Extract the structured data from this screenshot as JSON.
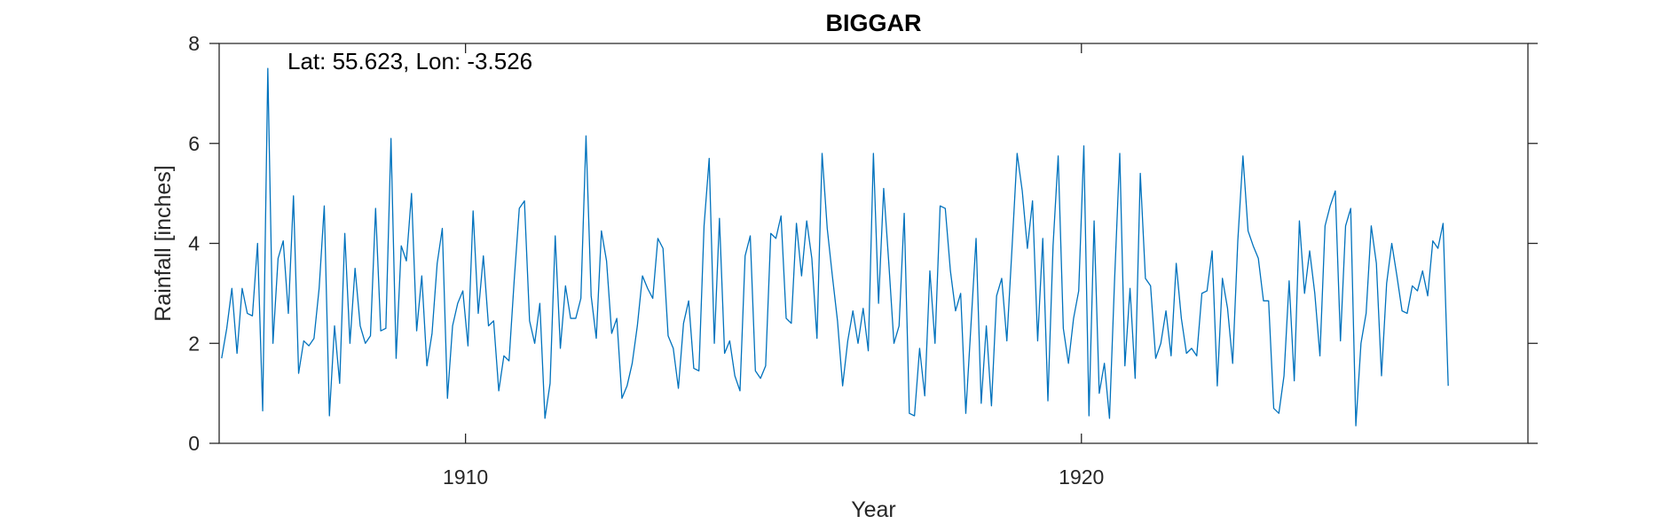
{
  "chart_data": {
    "type": "line",
    "title": "BIGGAR",
    "xlabel": "Year",
    "ylabel": "Rainfall [inches]",
    "annotation": "Lat: 55.623, Lon: -3.526",
    "xlim": [
      1906.0,
      1927.25
    ],
    "ylim": [
      0,
      8
    ],
    "xticks": [
      1910,
      1920
    ],
    "yticks": [
      0,
      2,
      4,
      6,
      8
    ],
    "grid": false,
    "x_start": 1906.04,
    "x_step": 0.08333,
    "line_color": "#0072BD",
    "series": [
      {
        "values": [
          1.7,
          2.3,
          3.1,
          1.8,
          3.1,
          2.6,
          2.55,
          4.0,
          0.65,
          7.5,
          2.0,
          3.7,
          4.05,
          2.6,
          4.95,
          1.4,
          2.05,
          1.95,
          2.1,
          3.1,
          4.75,
          0.55,
          2.35,
          1.2,
          4.2,
          2.0,
          3.5,
          2.35,
          2.0,
          2.15,
          4.7,
          2.25,
          2.3,
          6.1,
          1.7,
          3.95,
          3.65,
          5.0,
          2.25,
          3.35,
          1.55,
          2.2,
          3.6,
          4.3,
          0.9,
          2.35,
          2.8,
          3.05,
          1.95,
          4.65,
          2.6,
          3.75,
          2.35,
          2.45,
          1.05,
          1.75,
          1.65,
          3.25,
          4.7,
          4.85,
          2.45,
          2.0,
          2.8,
          0.5,
          1.2,
          4.15,
          1.9,
          3.15,
          2.5,
          2.5,
          2.9,
          6.15,
          2.95,
          2.1,
          4.25,
          3.65,
          2.2,
          2.5,
          0.9,
          1.15,
          1.6,
          2.35,
          3.35,
          3.1,
          2.9,
          4.1,
          3.9,
          2.15,
          1.9,
          1.1,
          2.4,
          2.85,
          1.5,
          1.45,
          4.35,
          5.7,
          2.0,
          4.5,
          1.8,
          2.05,
          1.35,
          1.05,
          3.75,
          4.15,
          1.45,
          1.3,
          1.55,
          4.2,
          4.1,
          4.55,
          2.5,
          2.4,
          4.4,
          3.35,
          4.45,
          3.7,
          2.1,
          5.8,
          4.3,
          3.35,
          2.45,
          1.15,
          2.05,
          2.65,
          2.0,
          2.7,
          1.85,
          5.8,
          2.8,
          5.1,
          3.6,
          2.0,
          2.35,
          4.6,
          0.6,
          0.55,
          1.9,
          0.95,
          3.45,
          2.0,
          4.75,
          4.7,
          3.45,
          2.65,
          3.0,
          0.6,
          2.35,
          4.1,
          0.8,
          2.35,
          0.75,
          2.95,
          3.3,
          2.05,
          3.9,
          5.8,
          5.05,
          3.9,
          4.85,
          2.05,
          4.1,
          0.85,
          3.95,
          5.75,
          2.3,
          1.6,
          2.5,
          3.05,
          5.95,
          0.55,
          4.45,
          1.0,
          1.6,
          0.5,
          3.3,
          5.8,
          1.55,
          3.1,
          1.3,
          5.4,
          3.3,
          3.15,
          1.7,
          2.0,
          2.65,
          1.75,
          3.6,
          2.5,
          1.8,
          1.9,
          1.75,
          3.0,
          3.05,
          3.85,
          1.15,
          3.3,
          2.7,
          1.6,
          4.05,
          5.75,
          4.25,
          3.95,
          3.7,
          2.85,
          2.85,
          0.7,
          0.6,
          1.35,
          3.25,
          1.25,
          4.45,
          3.0,
          3.85,
          3.0,
          1.75,
          4.35,
          4.75,
          5.05,
          2.05,
          4.35,
          4.7,
          0.35,
          2.0,
          2.6,
          4.35,
          3.6,
          1.35,
          3.2,
          4.0,
          3.35,
          2.65,
          2.6,
          3.15,
          3.05,
          3.45,
          2.95,
          4.05,
          3.9,
          4.4,
          1.15
        ]
      }
    ]
  }
}
